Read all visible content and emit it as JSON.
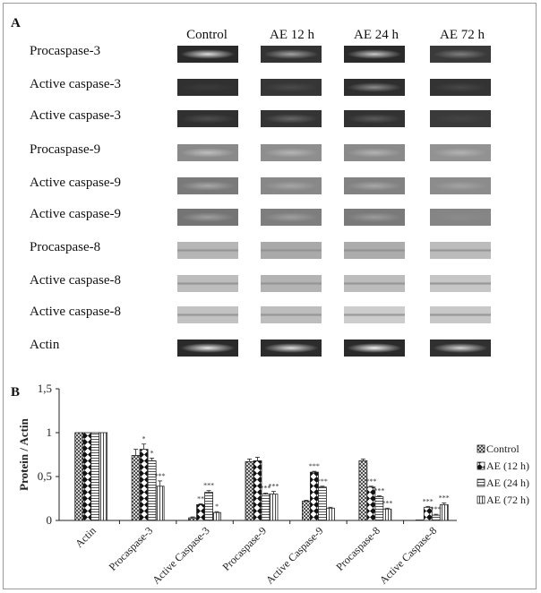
{
  "panels": {
    "a": "A",
    "b": "B"
  },
  "blot": {
    "columns": [
      "Control",
      "AE 12 h",
      "AE 24 h",
      "AE 72 h"
    ],
    "rows": [
      {
        "label": "Procaspase-3",
        "tone": "dark",
        "shades": [
          "#2a2a2a",
          "#333333",
          "#2a2a2a",
          "#3a3a3a"
        ],
        "glow": [
          0.85,
          0.55,
          0.75,
          0.35
        ]
      },
      {
        "label": "Active caspase-3",
        "tone": "dark",
        "shades": [
          "#303030",
          "#363636",
          "#2e2e2e",
          "#333333"
        ],
        "glow": [
          0.05,
          0.1,
          0.45,
          0.1
        ]
      },
      {
        "label": "Active caspase-3",
        "tone": "dark",
        "shades": [
          "#303030",
          "#343434",
          "#323232",
          "#3a3a3a"
        ],
        "glow": [
          0.15,
          0.25,
          0.2,
          0.05
        ]
      },
      {
        "label": "Procaspase-9",
        "tone": "mid",
        "shades": [
          "#8a8a8a",
          "#8e8e8e",
          "#8a8a8a",
          "#929292"
        ],
        "glow": [
          0.45,
          0.35,
          0.35,
          0.3
        ]
      },
      {
        "label": "Active caspase-9",
        "tone": "mid",
        "shades": [
          "#7a7a7a",
          "#888888",
          "#828282",
          "#8c8c8c"
        ],
        "glow": [
          0.35,
          0.25,
          0.3,
          0.2
        ]
      },
      {
        "label": "Active caspase-9",
        "tone": "mid",
        "shades": [
          "#747474",
          "#7e7e7e",
          "#7a7a7a",
          "#858585"
        ],
        "glow": [
          0.3,
          0.25,
          0.25,
          0.05
        ]
      },
      {
        "label": "Procaspase-8",
        "tone": "light",
        "shades": [
          "#b6b6b6",
          "#a9a9a9",
          "#acacac",
          "#bcbcbc"
        ],
        "glow": [
          0.0,
          0.0,
          0.0,
          0.0
        ]
      },
      {
        "label": "Active caspase-8",
        "tone": "light",
        "shades": [
          "#bdbdbd",
          "#b3b3b3",
          "#bcbcbc",
          "#c6c6c6"
        ],
        "glow": [
          0.0,
          0.0,
          0.0,
          0.0
        ]
      },
      {
        "label": "Active caspase-8",
        "tone": "light",
        "shades": [
          "#c2c2c2",
          "#bdbdbd",
          "#cdcdcd",
          "#c8c8c8"
        ],
        "glow": [
          0.0,
          0.0,
          0.0,
          0.0
        ]
      },
      {
        "label": "Actin",
        "tone": "dark",
        "shades": [
          "#2a2a2a",
          "#2c2c2c",
          "#2a2a2a",
          "#303030"
        ],
        "glow": [
          0.9,
          0.85,
          0.95,
          0.8
        ]
      }
    ]
  },
  "chart_data": {
    "type": "bar",
    "title": "",
    "xlabel": "",
    "ylabel": "Protein / Actin",
    "ylim": [
      0,
      1.5
    ],
    "yticks": [
      "0",
      "0,5",
      "1",
      "1,5"
    ],
    "grid": false,
    "legend": "right",
    "categories": [
      "Actin",
      "Procaspase-3",
      "Active Caspase-3",
      "Procaspase-9",
      "Active Caspase-9",
      "Procaspase-8",
      "Active Caspase-8"
    ],
    "series": [
      {
        "name": "Control",
        "pattern": "crosshatch",
        "values": [
          1.0,
          0.74,
          0.03,
          0.67,
          0.22,
          0.68,
          0.0
        ],
        "errors": [
          0,
          0.07,
          0.01,
          0.03,
          0.01,
          0.02,
          0
        ],
        "stars": [
          "",
          "",
          "",
          "",
          "",
          "",
          ""
        ]
      },
      {
        "name": "AE (12 h)",
        "pattern": "diamond",
        "values": [
          1.0,
          0.81,
          0.18,
          0.68,
          0.55,
          0.38,
          0.15
        ],
        "errors": [
          0,
          0.06,
          0.01,
          0.04,
          0.01,
          0.01,
          0.01
        ],
        "stars": [
          "",
          "*",
          "**",
          "",
          "***",
          "***",
          "***"
        ]
      },
      {
        "name": "AE (24 h)",
        "pattern": "hlines",
        "values": [
          1.0,
          0.68,
          0.32,
          0.3,
          0.38,
          0.27,
          0.06
        ],
        "errors": [
          0,
          0.03,
          0.02,
          0.01,
          0.01,
          0.01,
          0.01
        ],
        "stars": [
          "",
          "*",
          "***",
          "***",
          "***",
          "***",
          "***"
        ]
      },
      {
        "name": "AE (72 h)",
        "pattern": "vlines",
        "values": [
          1.0,
          0.39,
          0.09,
          0.3,
          0.14,
          0.13,
          0.18
        ],
        "errors": [
          0,
          0.06,
          0.01,
          0.03,
          0.01,
          0.01,
          0.02
        ],
        "stars": [
          "",
          "***",
          "*",
          "***",
          "",
          "***",
          "***"
        ]
      }
    ]
  }
}
